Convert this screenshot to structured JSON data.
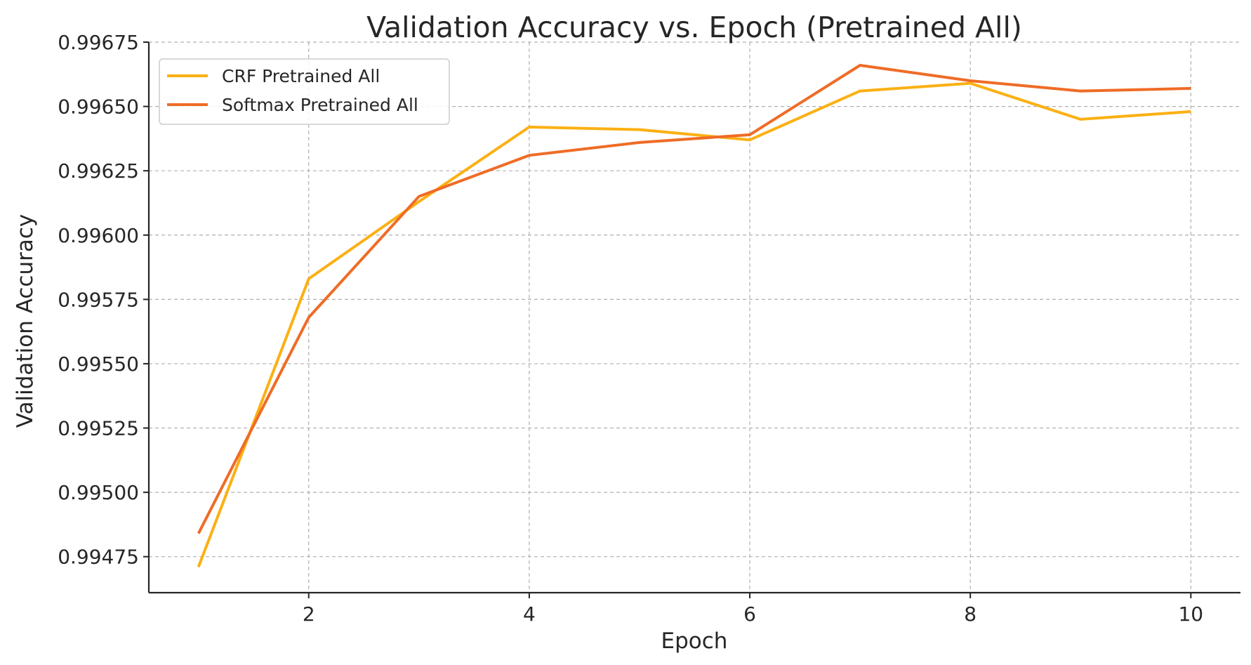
{
  "chart_data": {
    "type": "line",
    "title": "Validation Accuracy vs. Epoch (Pretrained All)",
    "xlabel": "Epoch",
    "ylabel": "Validation Accuracy",
    "x": [
      1,
      2,
      3,
      4,
      5,
      6,
      7,
      8,
      9,
      10
    ],
    "xlim": [
      0.55,
      10.45
    ],
    "ylim": [
      0.99461,
      0.99675
    ],
    "x_ticks": [
      2,
      4,
      6,
      8,
      10
    ],
    "x_tick_labels": [
      "2",
      "4",
      "6",
      "8",
      "10"
    ],
    "y_ticks": [
      0.99475,
      0.995,
      0.99525,
      0.9955,
      0.99575,
      0.996,
      0.99625,
      0.9965,
      0.99675
    ],
    "y_tick_labels": [
      "0.99475",
      "0.99500",
      "0.99525",
      "0.99550",
      "0.99575",
      "0.99600",
      "0.99625",
      "0.99650",
      "0.99675"
    ],
    "grid": true,
    "legend_position": "upper-left",
    "series": [
      {
        "name": "CRF Pretrained All",
        "color": "#FBB013",
        "values": [
          0.99471,
          0.99583,
          0.99613,
          0.99642,
          0.99641,
          0.99637,
          0.99656,
          0.99659,
          0.99645,
          0.99648
        ]
      },
      {
        "name": "Softmax Pretrained All",
        "color": "#EF6C26",
        "values": [
          0.99484,
          0.99568,
          0.99615,
          0.99631,
          0.99636,
          0.99639,
          0.99666,
          0.9966,
          0.99656,
          0.99657
        ]
      }
    ]
  }
}
